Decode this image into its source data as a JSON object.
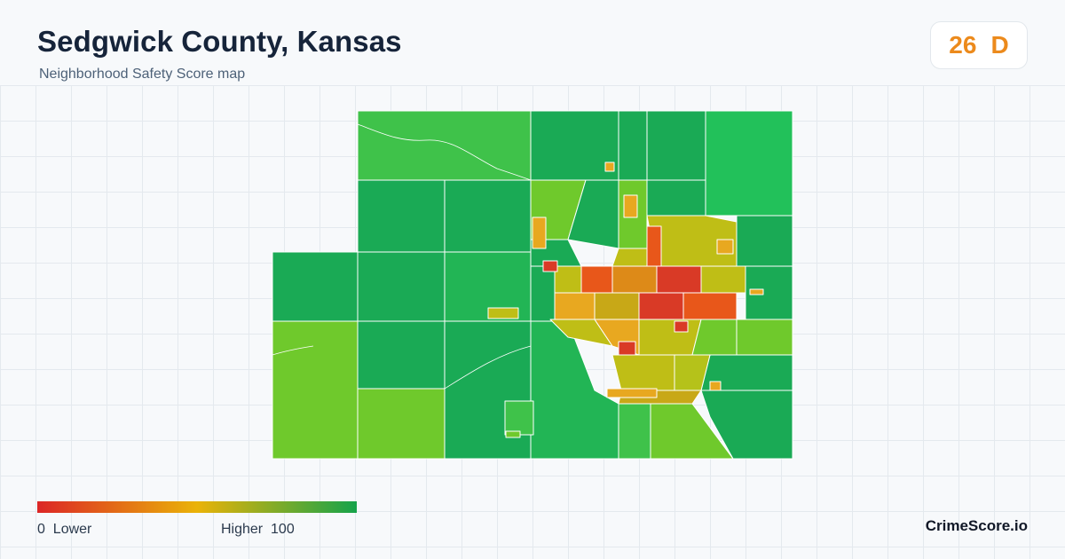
{
  "header": {
    "title": "Sedgwick County, Kansas",
    "subtitle": "Neighborhood Safety Score map"
  },
  "score": {
    "value": "26",
    "grade": "D",
    "color": "#ec8a1c"
  },
  "legend": {
    "min_label": "0  Lower",
    "max_label": "Higher  100",
    "scale_min": 0,
    "scale_max": 100,
    "colors": [
      "#dc2626",
      "#eab308",
      "#16a34a"
    ]
  },
  "map": {
    "region": "Sedgwick County, Kansas",
    "style": "census tracts colored by safety score",
    "fill_colors": {
      "high": "#1aaa55",
      "mid_high": "#6fc92c",
      "mid": "#bfbe16",
      "low_mid": "#e88a1a",
      "low": "#d93a26"
    },
    "boundary_color": "#ffffff"
  },
  "brand": "CrimeScore.io"
}
